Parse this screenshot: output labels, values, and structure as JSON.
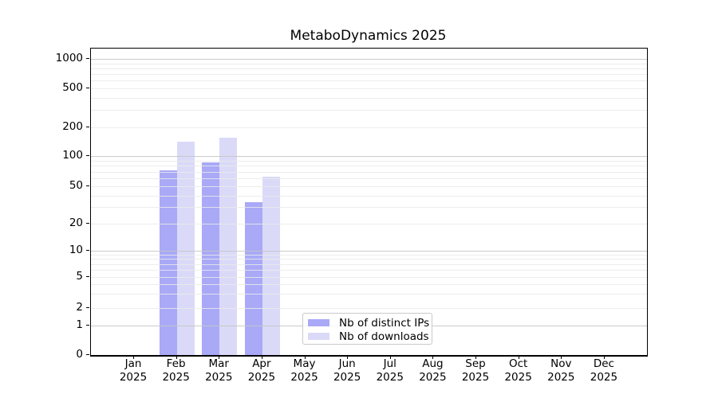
{
  "header": {
    "title": "MetaboDynamics 2025"
  },
  "legend": {
    "items": [
      {
        "label": "Nb of distinct IPs",
        "color": "#a9a9f7"
      },
      {
        "label": "Nb of downloads",
        "color": "#dadaf8"
      }
    ]
  },
  "chart_data": {
    "type": "bar",
    "title": "MetaboDynamics 2025",
    "categories": [
      "Jan",
      "Feb",
      "Mar",
      "Apr",
      "May",
      "Jun",
      "Jul",
      "Aug",
      "Sep",
      "Oct",
      "Nov",
      "Dec"
    ],
    "category_year": "2025",
    "series": [
      {
        "name": "Nb of distinct IPs",
        "color": "#a9a9f7",
        "values": [
          null,
          72,
          87,
          34,
          null,
          null,
          null,
          null,
          null,
          null,
          null,
          null
        ]
      },
      {
        "name": "Nb of downloads",
        "color": "#dadaf8",
        "values": [
          null,
          142,
          155,
          63,
          null,
          null,
          null,
          null,
          null,
          null,
          null,
          null
        ]
      }
    ],
    "y_ticks": [
      0,
      1,
      2,
      5,
      10,
      20,
      50,
      100,
      200,
      500,
      1000
    ],
    "y_major_gridlines": [
      1,
      10,
      100,
      1000
    ],
    "y_scale": "asinh (log-like, linear near zero)",
    "ylim": [
      0,
      1300
    ],
    "xlabel": "",
    "ylabel": "",
    "grid": "on",
    "legend_position": "lower center"
  }
}
